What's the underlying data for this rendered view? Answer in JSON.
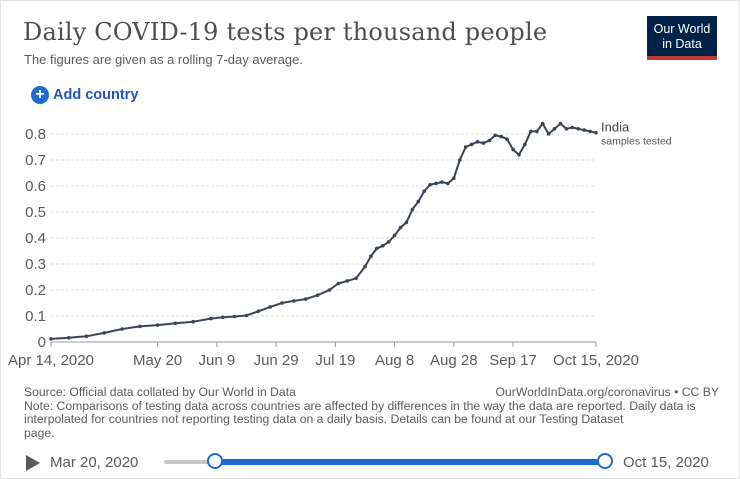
{
  "header": {
    "title": "Daily COVID-19 tests per thousand people",
    "subtitle": "The figures are given as a rolling 7-day average.",
    "logo_line1": "Our World",
    "logo_line2": "in Data"
  },
  "controls": {
    "add_country_label": "Add country"
  },
  "colors": {
    "line": "#3b4556",
    "grid": "#dddddd",
    "accent": "#1f6cd1",
    "logo_bg": "#002147",
    "logo_bar": "#c2382c"
  },
  "chart_data": {
    "type": "line",
    "title": "Daily COVID-19 tests per thousand people",
    "xlabel": "",
    "ylabel": "",
    "ylim": [
      0,
      0.85
    ],
    "yticks": [
      0,
      0.1,
      0.2,
      0.3,
      0.4,
      0.5,
      0.6,
      0.7,
      0.8
    ],
    "ytick_labels": [
      "0",
      "0.1",
      "0.2",
      "0.3",
      "0.4",
      "0.5",
      "0.6",
      "0.7",
      "0.8"
    ],
    "xlim": [
      0,
      184
    ],
    "xticks": [
      0,
      36,
      56,
      76,
      96,
      116,
      136,
      156,
      184
    ],
    "xtick_labels": [
      "Apr 14, 2020",
      "May 20",
      "Jun 9",
      "Jun 29",
      "Jul 19",
      "Aug 8",
      "Aug 28",
      "Sep 17",
      "Oct 15, 2020"
    ],
    "grid": true,
    "series": [
      {
        "name": "India",
        "annotation": "samples tested",
        "points": [
          [
            0,
            0.012
          ],
          [
            6,
            0.016
          ],
          [
            12,
            0.022
          ],
          [
            18,
            0.035
          ],
          [
            24,
            0.05
          ],
          [
            30,
            0.06
          ],
          [
            36,
            0.065
          ],
          [
            42,
            0.072
          ],
          [
            48,
            0.078
          ],
          [
            54,
            0.09
          ],
          [
            58,
            0.095
          ],
          [
            62,
            0.098
          ],
          [
            66,
            0.102
          ],
          [
            70,
            0.118
          ],
          [
            74,
            0.135
          ],
          [
            78,
            0.15
          ],
          [
            82,
            0.158
          ],
          [
            86,
            0.165
          ],
          [
            90,
            0.18
          ],
          [
            94,
            0.2
          ],
          [
            97,
            0.225
          ],
          [
            100,
            0.235
          ],
          [
            103,
            0.245
          ],
          [
            106,
            0.29
          ],
          [
            108,
            0.33
          ],
          [
            110,
            0.36
          ],
          [
            112,
            0.37
          ],
          [
            114,
            0.385
          ],
          [
            116,
            0.41
          ],
          [
            118,
            0.44
          ],
          [
            120,
            0.46
          ],
          [
            122,
            0.51
          ],
          [
            124,
            0.54
          ],
          [
            126,
            0.58
          ],
          [
            128,
            0.605
          ],
          [
            130,
            0.61
          ],
          [
            132,
            0.615
          ],
          [
            134,
            0.61
          ],
          [
            136,
            0.63
          ],
          [
            138,
            0.7
          ],
          [
            140,
            0.75
          ],
          [
            142,
            0.76
          ],
          [
            144,
            0.77
          ],
          [
            146,
            0.765
          ],
          [
            148,
            0.775
          ],
          [
            150,
            0.795
          ],
          [
            152,
            0.79
          ],
          [
            154,
            0.78
          ],
          [
            156,
            0.74
          ],
          [
            158,
            0.72
          ],
          [
            160,
            0.76
          ],
          [
            162,
            0.81
          ],
          [
            164,
            0.81
          ],
          [
            166,
            0.84
          ],
          [
            168,
            0.8
          ],
          [
            170,
            0.82
          ],
          [
            172,
            0.84
          ],
          [
            174,
            0.82
          ],
          [
            176,
            0.825
          ],
          [
            178,
            0.82
          ],
          [
            180,
            0.815
          ],
          [
            182,
            0.81
          ],
          [
            184,
            0.805
          ]
        ]
      }
    ]
  },
  "footer": {
    "source": "Source: Official data collated by Our World in Data",
    "credit": "OurWorldInData.org/coronavirus • CC BY",
    "note": "Note: Comparisons of testing data across countries are affected by differences in the way the data are reported. Daily data is interpolated for countries not reporting testing data on a daily basis. Details can be found at our Testing Dataset",
    "note_tail": "page."
  },
  "timeline": {
    "start_date": "Mar 20, 2020",
    "end_date": "Oct 15, 2020"
  }
}
